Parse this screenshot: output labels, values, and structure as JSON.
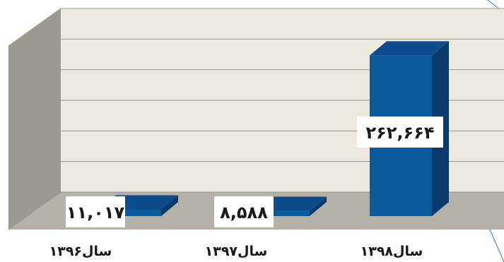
{
  "chart_data": {
    "type": "bar",
    "categories": [
      "سال۱۳۹۶",
      "سال۱۳۹۷",
      "سال۱۳۹۸"
    ],
    "series": [
      {
        "values": [
          11017,
          8588,
          262664
        ],
        "data_labels": [
          "۱۱,۰۱۷",
          "۸,۵۸۸",
          "۲۶۲,۶۶۴"
        ]
      }
    ],
    "ylim": [
      0,
      300000
    ],
    "grid": true,
    "colors": {
      "bar_front": "#0a5a9e",
      "bar_side": "#083a6c",
      "bar_top": "#0d4c8a",
      "back_wall": "#ece9df",
      "side_wall": "#9b9a91",
      "floor": "#b4b1a6",
      "gridline": "#9c9a8f",
      "accent_line": "#5b86c4",
      "label_text": "#1a1a1a"
    }
  }
}
